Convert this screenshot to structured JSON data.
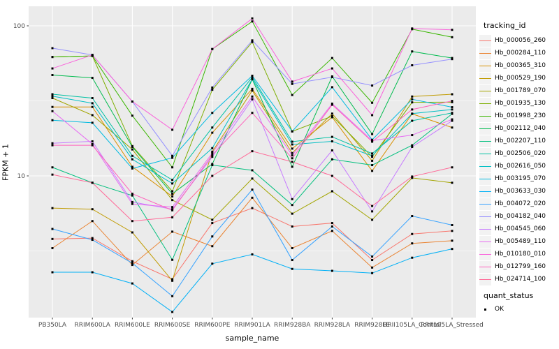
{
  "chart_data": {
    "type": "line",
    "title": "",
    "xlabel": "sample_name",
    "ylabel": "FPKM + 1",
    "legend_title": "tracking_id",
    "quant_legend": {
      "title": "quant_status",
      "items": [
        "OK"
      ]
    },
    "x_axis": {
      "categories": [
        "PB350LA",
        "RRIM600LA",
        "RRIM600LE",
        "RRIM600SE",
        "RRIM600PE",
        "RRIM901LA",
        "RRIM928BA",
        "RRIM928LA",
        "RRIM928LE",
        "RRII105LA_Control",
        "RRII105LA_Stressed"
      ]
    },
    "y_axis": {
      "scale": "log10",
      "ticks": [
        10,
        100
      ],
      "minor_breaks": [
        3.162,
        31.62
      ],
      "range_approx": [
        1.15,
        135
      ]
    },
    "point_style": {
      "shape": "square",
      "color": "#000000"
    },
    "colors": {
      "panel_bg": "#EBEBEB",
      "grid": "#FFFFFF",
      "tick_label": "#4D4D4D",
      "axis_text": "#000000",
      "legend_key_bg": "#F2F2F2",
      "tick_mark": "#333333"
    },
    "series": [
      {
        "name": "Hb_000056_260",
        "color": "#F8766D",
        "values": [
          3.8,
          3.85,
          2.7,
          2.05,
          4.85,
          6.1,
          4.6,
          4.85,
          2.75,
          4.1,
          4.3
        ]
      },
      {
        "name": "Hb_000284_110",
        "color": "#EA8331",
        "values": [
          3.3,
          5.0,
          2.55,
          4.25,
          3.4,
          7.15,
          3.3,
          4.3,
          2.45,
          3.55,
          3.7
        ]
      },
      {
        "name": "Hb_000365_310",
        "color": "#D89000",
        "values": [
          28.8,
          28.8,
          11.5,
          7.3,
          19.4,
          38.0,
          15.2,
          24.6,
          10.8,
          25.9,
          21.0
        ]
      },
      {
        "name": "Hb_000529_190",
        "color": "#C09B00",
        "values": [
          6.1,
          6.0,
          4.2,
          2.0,
          14.5,
          37.0,
          14.2,
          26.0,
          12.6,
          33.8,
          35.0
        ]
      },
      {
        "name": "Hb_001789_070",
        "color": "#A3A500",
        "values": [
          33.0,
          25.4,
          15.0,
          6.9,
          5.1,
          9.6,
          5.6,
          7.9,
          5.1,
          9.7,
          9.0
        ]
      },
      {
        "name": "Hb_001935_130",
        "color": "#7CAE00",
        "values": [
          62.0,
          63.0,
          15.8,
          7.9,
          37.5,
          78.0,
          19.8,
          25.0,
          13.4,
          30.9,
          31.0
        ]
      },
      {
        "name": "Hb_001998_230",
        "color": "#39B600",
        "values": [
          62.0,
          63.0,
          25.2,
          11.4,
          70.0,
          107.0,
          34.6,
          61.0,
          30.7,
          95.0,
          84.0
        ]
      },
      {
        "name": "Hb_002112_040",
        "color": "#00BB4E",
        "values": [
          47.0,
          45.0,
          15.6,
          7.6,
          12.0,
          44.0,
          11.5,
          46.0,
          19.0,
          67.5,
          61.0
        ]
      },
      {
        "name": "Hb_002207_110",
        "color": "#00BF7D",
        "values": [
          11.4,
          9.0,
          7.4,
          2.76,
          11.8,
          10.9,
          6.4,
          12.9,
          11.8,
          16.0,
          25.9
        ]
      },
      {
        "name": "Hb_002506_020",
        "color": "#00C1A3",
        "values": [
          35.0,
          33.0,
          13.6,
          9.4,
          21.0,
          45.5,
          16.9,
          18.2,
          14.1,
          23.3,
          26.3
        ]
      },
      {
        "name": "Hb_002616_050",
        "color": "#00BFC4",
        "values": [
          34.0,
          30.5,
          12.9,
          8.9,
          15.3,
          44.2,
          16.2,
          17.0,
          13.6,
          26.0,
          27.7
        ]
      },
      {
        "name": "Hb_003195_070",
        "color": "#00BAE0",
        "values": [
          23.5,
          22.6,
          11.2,
          13.2,
          26.3,
          46.5,
          19.8,
          39.0,
          17.4,
          32.4,
          28.7
        ]
      },
      {
        "name": "Hb_003633_030",
        "color": "#00B0F6",
        "values": [
          2.28,
          2.28,
          1.92,
          1.24,
          2.6,
          3.0,
          2.4,
          2.33,
          2.25,
          2.85,
          3.26
        ]
      },
      {
        "name": "Hb_004072_020",
        "color": "#35A2FF",
        "values": [
          4.43,
          3.75,
          2.62,
          1.58,
          3.95,
          8.1,
          2.75,
          4.6,
          2.9,
          5.4,
          4.7
        ]
      },
      {
        "name": "Hb_004182_040",
        "color": "#9590FF",
        "values": [
          71.0,
          64.0,
          31.3,
          13.6,
          38.8,
          80.0,
          41.0,
          45.5,
          40.0,
          54.6,
          60.0
        ]
      },
      {
        "name": "Hb_004545_060",
        "color": "#C77CFF",
        "values": [
          16.5,
          17.0,
          6.7,
          6.0,
          13.4,
          32.4,
          7.0,
          14.8,
          5.8,
          15.6,
          23.3
        ]
      },
      {
        "name": "Hb_005489_110",
        "color": "#E76BF3",
        "values": [
          27.0,
          16.3,
          6.5,
          6.2,
          14.2,
          33.8,
          13.7,
          30.3,
          17.2,
          18.7,
          23.8
        ]
      },
      {
        "name": "Hb_010180_010",
        "color": "#FA62DB",
        "values": [
          52.0,
          64.0,
          31.3,
          20.3,
          70.0,
          112.0,
          42.5,
          52.0,
          25.4,
          96.0,
          94.0
        ]
      },
      {
        "name": "Hb_012799_160",
        "color": "#FF62BC",
        "values": [
          16.0,
          16.0,
          7.6,
          5.9,
          13.8,
          26.3,
          13.1,
          29.8,
          16.9,
          27.7,
          31.6
        ]
      },
      {
        "name": "Hb_024714_100",
        "color": "#FF6A98",
        "values": [
          10.2,
          9.0,
          5.0,
          5.3,
          10.0,
          14.6,
          12.4,
          10.0,
          6.3,
          9.9,
          11.4
        ]
      }
    ]
  }
}
